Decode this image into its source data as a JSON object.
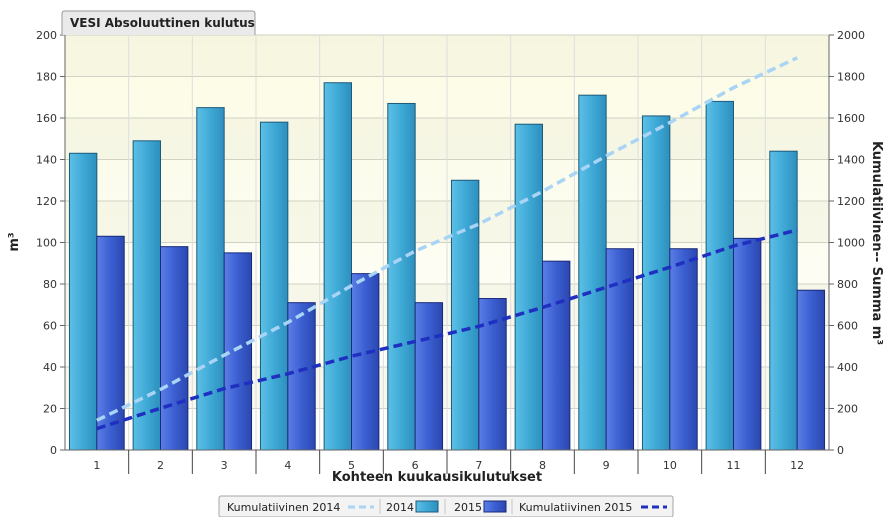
{
  "chart_data": {
    "type": "bar",
    "title": "VESI Absoluuttinen kulutus",
    "xlabel": "Kohteen kuukausikulutukset",
    "ylabel": "m³",
    "y2label": "Kumulatiivinen-- Summa m³",
    "categories": [
      "1",
      "2",
      "3",
      "4",
      "5",
      "6",
      "7",
      "8",
      "9",
      "10",
      "11",
      "12"
    ],
    "ylim": [
      0,
      200
    ],
    "y2lim": [
      0,
      2000
    ],
    "yticks": [
      0,
      20,
      40,
      60,
      80,
      100,
      120,
      140,
      160,
      180,
      200
    ],
    "y2ticks": [
      0,
      200,
      400,
      600,
      800,
      1000,
      1200,
      1400,
      1600,
      1800,
      2000
    ],
    "grid": true,
    "legend_position": "bottom-center",
    "series": [
      {
        "name": "2014",
        "kind": "bar",
        "axis": "left",
        "color": "#3fa9d6",
        "values": [
          143,
          149,
          165,
          158,
          177,
          167,
          130,
          157,
          171,
          161,
          168,
          144
        ]
      },
      {
        "name": "2015",
        "kind": "bar",
        "axis": "left",
        "color": "#3b5fd1",
        "values": [
          103,
          98,
          95,
          71,
          85,
          71,
          73,
          91,
          97,
          97,
          102,
          77
        ]
      },
      {
        "name": "Kumulatiivinen 2014",
        "kind": "line",
        "axis": "right",
        "color": "#a9d4f5",
        "dash": true,
        "values": [
          143,
          292,
          457,
          615,
          792,
          959,
          1089,
          1246,
          1417,
          1578,
          1746,
          1890
        ]
      },
      {
        "name": "Kumulatiivinen 2015",
        "kind": "line",
        "axis": "right",
        "color": "#1f2fc0",
        "dash": true,
        "values": [
          103,
          201,
          296,
          367,
          452,
          523,
          596,
          687,
          784,
          881,
          983,
          1060
        ]
      }
    ],
    "legend_order": [
      "Kumulatiivinen 2014",
      "2014",
      "2015",
      "Kumulatiivinen 2015"
    ]
  }
}
